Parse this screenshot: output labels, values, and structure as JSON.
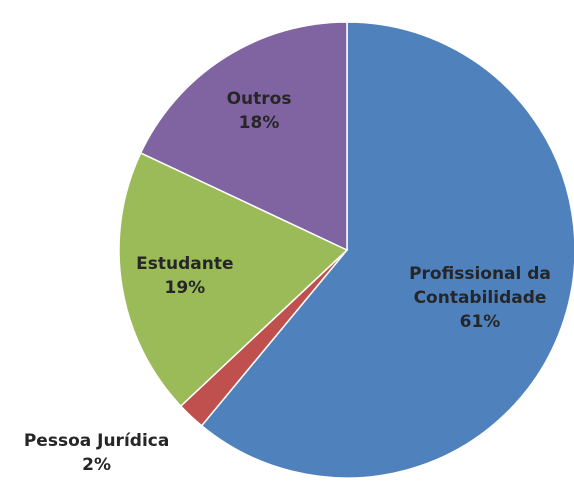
{
  "chart_data": {
    "type": "pie",
    "categories": [
      "Profissional da Contabilidade",
      "Pessoa Jurídica",
      "Estudante",
      "Outros"
    ],
    "values": [
      61,
      2,
      19,
      18
    ],
    "value_labels": [
      "61%",
      "2%",
      "19%",
      "18%"
    ],
    "colors": [
      "#4f81bd",
      "#c0504d",
      "#9bbb59",
      "#8064a2"
    ]
  }
}
